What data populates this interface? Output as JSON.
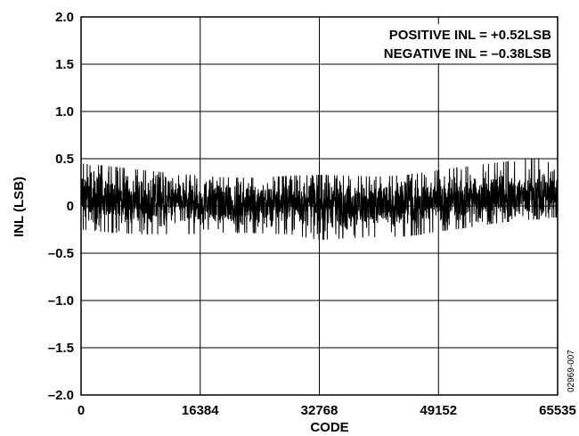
{
  "chart_data": {
    "type": "line",
    "xlabel": "CODE",
    "ylabel": "INL (LSB)",
    "xlim": [
      0,
      65535
    ],
    "ylim": [
      -2.0,
      2.0
    ],
    "x_ticks": [
      0,
      16384,
      32768,
      49152,
      65535
    ],
    "x_tick_labels": [
      "0",
      "16384",
      "32768",
      "49152",
      "65535"
    ],
    "y_ticks": [
      2.0,
      1.5,
      1.0,
      0.5,
      0,
      -0.5,
      -1.0,
      -1.5,
      -2.0
    ],
    "y_tick_labels": [
      "2.0",
      "1.5",
      "1.0",
      "0.5",
      "0",
      "–0.5",
      "–1.0",
      "–1.5",
      "–2.0"
    ],
    "grid": true,
    "annotations": [
      "POSITIVE INL = +0.52LSB",
      "NEGATIVE INL = –0.38LSB"
    ],
    "series": [
      {
        "color": "#000000",
        "x": [
          0,
          4096,
          8192,
          12288,
          16384,
          20480,
          24576,
          28672,
          32768,
          36864,
          40960,
          45056,
          49152,
          53248,
          57344,
          61440,
          65535
        ],
        "upper": [
          0.45,
          0.42,
          0.38,
          0.35,
          0.32,
          0.3,
          0.3,
          0.32,
          0.33,
          0.32,
          0.31,
          0.33,
          0.38,
          0.42,
          0.46,
          0.5,
          0.52
        ],
        "center": [
          0.1,
          0.07,
          0.05,
          0.04,
          0.03,
          0.02,
          0.02,
          0.03,
          0.03,
          0.02,
          0.01,
          0.03,
          0.05,
          0.07,
          0.09,
          0.11,
          0.12
        ],
        "lower": [
          -0.25,
          -0.28,
          -0.3,
          -0.3,
          -0.29,
          -0.28,
          -0.29,
          -0.3,
          -0.36,
          -0.34,
          -0.33,
          -0.32,
          -0.27,
          -0.23,
          -0.18,
          -0.15,
          -0.12
        ]
      }
    ]
  },
  "figure_id": "02969-007"
}
